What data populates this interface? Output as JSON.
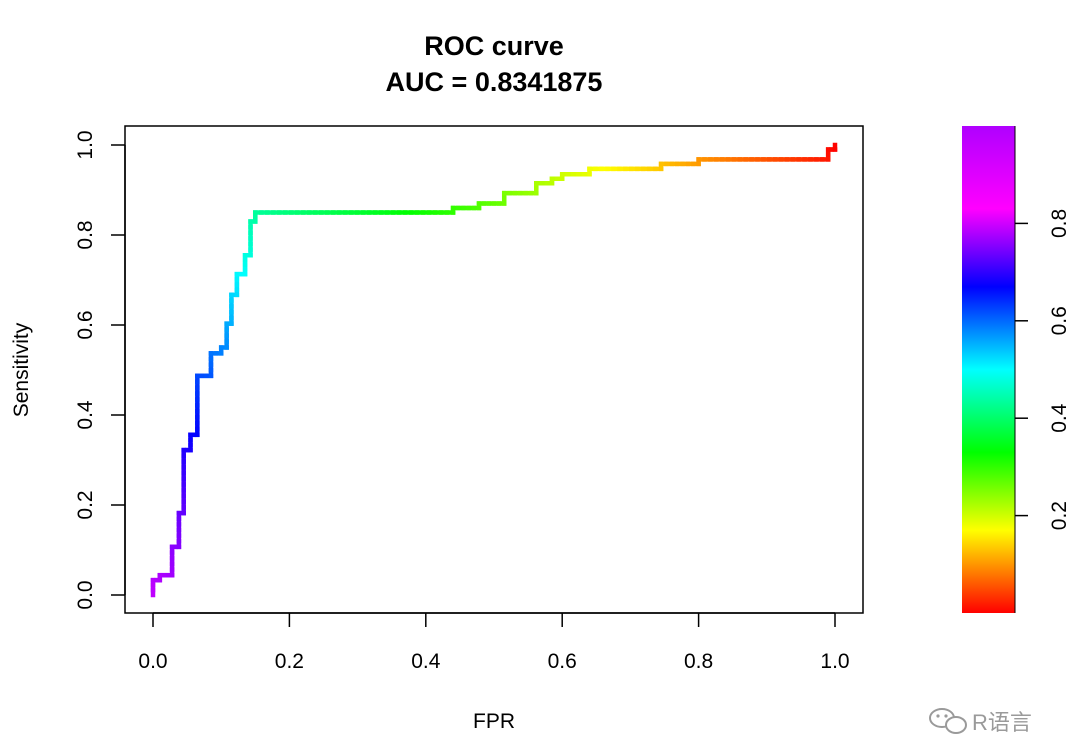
{
  "chart_data": {
    "type": "line",
    "title": "ROC curve",
    "subtitle": "AUC = 0.8341875",
    "xlabel": "FPR",
    "ylabel": "Sensitivity",
    "xlim": [
      0,
      1
    ],
    "ylim": [
      0,
      1
    ],
    "xticks": [
      "0.0",
      "0.2",
      "0.4",
      "0.6",
      "0.8",
      "1.0"
    ],
    "yticks": [
      "0.0",
      "0.2",
      "0.4",
      "0.6",
      "0.8",
      "1.0"
    ],
    "xtick_values": [
      0,
      0.2,
      0.4,
      0.6,
      0.8,
      1.0
    ],
    "ytick_values": [
      0,
      0.2,
      0.4,
      0.6,
      0.8,
      1.0
    ],
    "colorbar": {
      "ticks": [
        "0.2",
        "0.4",
        "0.6",
        "0.8"
      ],
      "tick_values": [
        0.2,
        0.4,
        0.6,
        0.8
      ],
      "range": [
        0,
        1
      ],
      "colormap": "rainbow: red (low) to magenta (high)"
    },
    "series": [
      {
        "name": "ROC",
        "x": [
          0,
          0,
          0.01,
          0.01,
          0.028,
          0.028,
          0.038,
          0.038,
          0.045,
          0.045,
          0.055,
          0.055,
          0.065,
          0.065,
          0.085,
          0.085,
          0.1,
          0.1,
          0.108,
          0.108,
          0.115,
          0.115,
          0.123,
          0.123,
          0.135,
          0.135,
          0.143,
          0.143,
          0.15,
          0.15,
          0.44,
          0.44,
          0.478,
          0.478,
          0.515,
          0.515,
          0.562,
          0.562,
          0.585,
          0.585,
          0.6,
          0.6,
          0.64,
          0.64,
          0.745,
          0.745,
          0.8,
          0.8,
          0.99,
          0.99,
          1.0,
          1.0
        ],
        "y": [
          0,
          0.033,
          0.033,
          0.044,
          0.044,
          0.107,
          0.107,
          0.182,
          0.182,
          0.322,
          0.322,
          0.356,
          0.356,
          0.487,
          0.487,
          0.537,
          0.537,
          0.55,
          0.55,
          0.603,
          0.603,
          0.667,
          0.667,
          0.713,
          0.713,
          0.755,
          0.755,
          0.83,
          0.83,
          0.85,
          0.85,
          0.86,
          0.86,
          0.87,
          0.87,
          0.893,
          0.893,
          0.915,
          0.915,
          0.925,
          0.925,
          0.935,
          0.935,
          0.947,
          0.947,
          0.958,
          0.958,
          0.968,
          0.968,
          0.99,
          0.99,
          1.0
        ],
        "color_by": "threshold (1 at FPR=0, 0 at FPR=1)"
      }
    ]
  },
  "watermark": {
    "text": "R语言",
    "icon": "wechat-icon"
  }
}
